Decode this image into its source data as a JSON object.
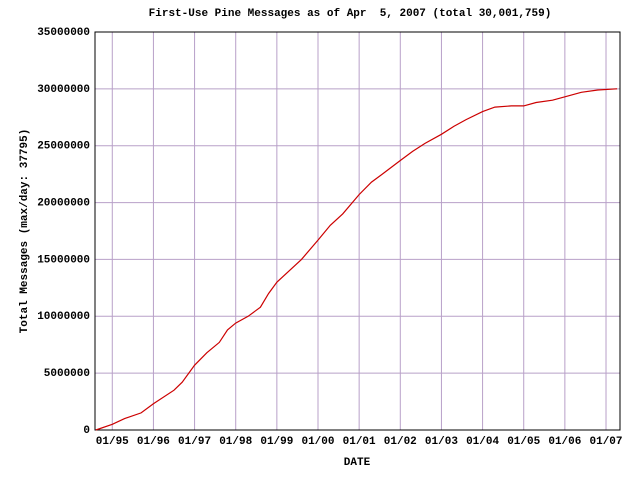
{
  "chart_data": {
    "type": "line",
    "title": "First-Use Pine Messages as of Apr  5, 2007 (total 30,001,759)",
    "x_label": "DATE",
    "y_label": "Total Messages (max/day: 37795)",
    "x": [
      1994.6,
      1995.0,
      1995.3,
      1995.7,
      1996.0,
      1996.5,
      1996.7,
      1997.0,
      1997.3,
      1997.6,
      1997.8,
      1998.0,
      1998.3,
      1998.6,
      1998.8,
      1999.0,
      1999.3,
      1999.6,
      2000.0,
      2000.3,
      2000.6,
      2001.0,
      2001.3,
      2001.6,
      2002.0,
      2002.3,
      2002.6,
      2003.0,
      2003.3,
      2003.6,
      2004.0,
      2004.3,
      2004.7,
      2005.0,
      2005.3,
      2005.7,
      2006.0,
      2006.4,
      2006.8,
      2007.27
    ],
    "series": [
      {
        "name": "Total Messages",
        "color": "#cc0000",
        "values": [
          0,
          500000,
          1000000,
          1500000,
          2300000,
          3500000,
          4200000,
          5700000,
          6800000,
          7700000,
          8800000,
          9400000,
          10000000,
          10800000,
          12000000,
          13000000,
          14000000,
          15000000,
          16700000,
          18000000,
          19000000,
          20700000,
          21800000,
          22600000,
          23700000,
          24500000,
          25200000,
          26000000,
          26700000,
          27300000,
          28000000,
          28400000,
          28500000,
          28500000,
          28800000,
          29000000,
          29300000,
          29700000,
          29900000,
          30001759
        ]
      }
    ],
    "xlim": [
      1994.58,
      2007.34
    ],
    "xticks": [
      {
        "value": 1995,
        "label": "01/95"
      },
      {
        "value": 1996,
        "label": "01/96"
      },
      {
        "value": 1997,
        "label": "01/97"
      },
      {
        "value": 1998,
        "label": "01/98"
      },
      {
        "value": 1999,
        "label": "01/99"
      },
      {
        "value": 2000,
        "label": "01/00"
      },
      {
        "value": 2001,
        "label": "01/01"
      },
      {
        "value": 2002,
        "label": "01/02"
      },
      {
        "value": 2003,
        "label": "01/03"
      },
      {
        "value": 2004,
        "label": "01/04"
      },
      {
        "value": 2005,
        "label": "01/05"
      },
      {
        "value": 2006,
        "label": "01/06"
      },
      {
        "value": 2007,
        "label": "01/07"
      }
    ],
    "ylim": [
      0,
      35000000
    ],
    "yticks": [
      0,
      5000000,
      10000000,
      15000000,
      20000000,
      25000000,
      30000000,
      35000000
    ],
    "grid": true,
    "grid_color": "#b8a0c8"
  }
}
